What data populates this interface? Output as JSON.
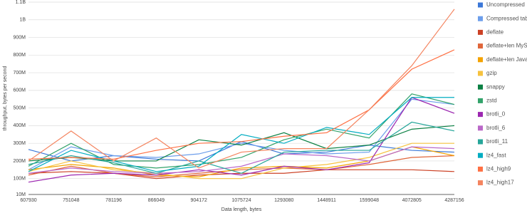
{
  "chart_data": {
    "type": "line",
    "x_label": "Data length, bytes",
    "y_label": "throughput, bytes per second",
    "categories": [
      "607930",
      "751048",
      "781196",
      "866049",
      "904172",
      "1075724",
      "1293080",
      "1448911",
      "1599048",
      "4072805",
      "4287156"
    ],
    "ylim": [
      10000000,
      1100000000
    ],
    "yticks": [
      {
        "value": 10000000,
        "label": "10M"
      },
      {
        "value": 100000000,
        "label": "100M"
      },
      {
        "value": 200000000,
        "label": "200M"
      },
      {
        "value": 300000000,
        "label": "300M"
      },
      {
        "value": 400000000,
        "label": "400M"
      },
      {
        "value": 500000000,
        "label": "500M"
      },
      {
        "value": 600000000,
        "label": "600M"
      },
      {
        "value": 700000000,
        "label": "700M"
      },
      {
        "value": 800000000,
        "label": "800M"
      },
      {
        "value": 900000000,
        "label": "900M"
      },
      {
        "value": 1000000000,
        "label": "1B"
      },
      {
        "value": 1100000000,
        "label": "1.1B"
      }
    ],
    "grid": true,
    "legend": "right",
    "series": [
      {
        "name": "Uncompressed",
        "color": "#3c78d8",
        "values": [
          265000000,
          200000000,
          230000000,
          210000000,
          200000000,
          310000000,
          240000000,
          250000000,
          290000000,
          260000000,
          250000000
        ]
      },
      {
        "name": "Compressed table",
        "color": "#6d9eeb",
        "values": [
          150000000,
          280000000,
          230000000,
          220000000,
          240000000,
          300000000,
          260000000,
          240000000,
          250000000,
          550000000,
          520000000
        ]
      },
      {
        "name": "deflate",
        "color": "#cc4125",
        "values": [
          130000000,
          140000000,
          130000000,
          100000000,
          120000000,
          130000000,
          130000000,
          150000000,
          150000000,
          150000000,
          140000000
        ]
      },
      {
        "name": "deflate+len MySQL",
        "color": "#e0663a",
        "values": [
          120000000,
          170000000,
          130000000,
          110000000,
          130000000,
          150000000,
          160000000,
          150000000,
          180000000,
          220000000,
          230000000
        ]
      },
      {
        "name": "deflate+len Java",
        "color": "#f4a300",
        "values": [
          150000000,
          180000000,
          160000000,
          120000000,
          110000000,
          160000000,
          170000000,
          160000000,
          200000000,
          280000000,
          230000000
        ]
      },
      {
        "name": "gzip",
        "color": "#f6c23e",
        "values": [
          140000000,
          200000000,
          150000000,
          130000000,
          100000000,
          100000000,
          160000000,
          180000000,
          220000000,
          300000000,
          300000000
        ]
      },
      {
        "name": "snappy",
        "color": "#0b8043",
        "values": [
          200000000,
          220000000,
          200000000,
          200000000,
          320000000,
          290000000,
          360000000,
          270000000,
          290000000,
          380000000,
          400000000
        ]
      },
      {
        "name": "zstd",
        "color": "#33a36b",
        "values": [
          170000000,
          300000000,
          180000000,
          160000000,
          180000000,
          220000000,
          320000000,
          380000000,
          330000000,
          580000000,
          520000000
        ]
      },
      {
        "name": "brotli_0",
        "color": "#9c27b0",
        "values": [
          80000000,
          120000000,
          130000000,
          120000000,
          150000000,
          120000000,
          170000000,
          150000000,
          190000000,
          560000000,
          470000000
        ]
      },
      {
        "name": "brotli_6",
        "color": "#ba68c8",
        "values": [
          130000000,
          160000000,
          140000000,
          130000000,
          140000000,
          170000000,
          240000000,
          230000000,
          200000000,
          280000000,
          270000000
        ]
      },
      {
        "name": "brotli_11",
        "color": "#26a69a",
        "values": [
          180000000,
          230000000,
          190000000,
          130000000,
          200000000,
          130000000,
          250000000,
          260000000,
          260000000,
          420000000,
          370000000
        ]
      },
      {
        "name": "lz4_fast",
        "color": "#00acc1",
        "values": [
          140000000,
          260000000,
          200000000,
          140000000,
          170000000,
          350000000,
          300000000,
          390000000,
          350000000,
          560000000,
          560000000
        ]
      },
      {
        "name": "lz4_high9",
        "color": "#ff7043",
        "values": [
          210000000,
          220000000,
          210000000,
          260000000,
          300000000,
          310000000,
          340000000,
          360000000,
          490000000,
          720000000,
          830000000
        ]
      },
      {
        "name": "lz4_high17",
        "color": "#f4845f",
        "values": [
          200000000,
          370000000,
          200000000,
          330000000,
          160000000,
          250000000,
          270000000,
          270000000,
          490000000,
          740000000,
          1060000000
        ]
      }
    ]
  }
}
